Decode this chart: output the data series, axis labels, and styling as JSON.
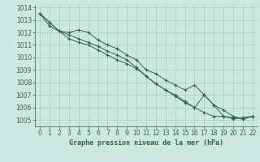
{
  "title": "Graphe pression niveau de la mer (hPa)",
  "background_color": "#cce8e0",
  "grid_color": "#aaccbb",
  "line_color": "#2d6644",
  "xlim": [
    -0.5,
    22.5
  ],
  "ylim": [
    1004.5,
    1014.2
  ],
  "xticks": [
    0,
    1,
    2,
    3,
    4,
    5,
    6,
    7,
    8,
    9,
    10,
    11,
    12,
    13,
    14,
    15,
    16,
    17,
    18,
    19,
    20,
    21,
    22
  ],
  "yticks": [
    1005,
    1006,
    1007,
    1008,
    1009,
    1010,
    1011,
    1012,
    1013,
    1014
  ],
  "series": [
    [
      1013.5,
      1012.8,
      1012.1,
      1012.0,
      1012.2,
      1012.0,
      1011.4,
      1011.0,
      1010.7,
      1010.2,
      1009.8,
      1009.0,
      1008.7,
      1008.2,
      1007.8,
      1007.4,
      1007.8,
      1007.0,
      1006.2,
      1005.3,
      1005.1,
      1005.2,
      1005.3
    ],
    [
      1013.5,
      1012.8,
      1012.1,
      1011.8,
      1011.5,
      1011.2,
      1010.9,
      1010.5,
      1010.2,
      1009.8,
      1009.2,
      1008.5,
      1007.9,
      1007.4,
      1006.9,
      1006.4,
      1006.0,
      1005.6,
      1005.3,
      1005.3,
      1005.2,
      1005.1,
      1005.3
    ],
    [
      1013.5,
      1012.5,
      1012.1,
      1011.5,
      1011.2,
      1011.0,
      1010.6,
      1010.2,
      1009.8,
      1009.5,
      1009.1,
      1008.5,
      1007.9,
      1007.4,
      1007.0,
      1006.5,
      1006.0,
      1007.0,
      1006.2,
      1005.8,
      1005.3,
      1005.1,
      1005.3
    ]
  ],
  "tick_fontsize": 5.5,
  "label_fontsize": 6.0
}
